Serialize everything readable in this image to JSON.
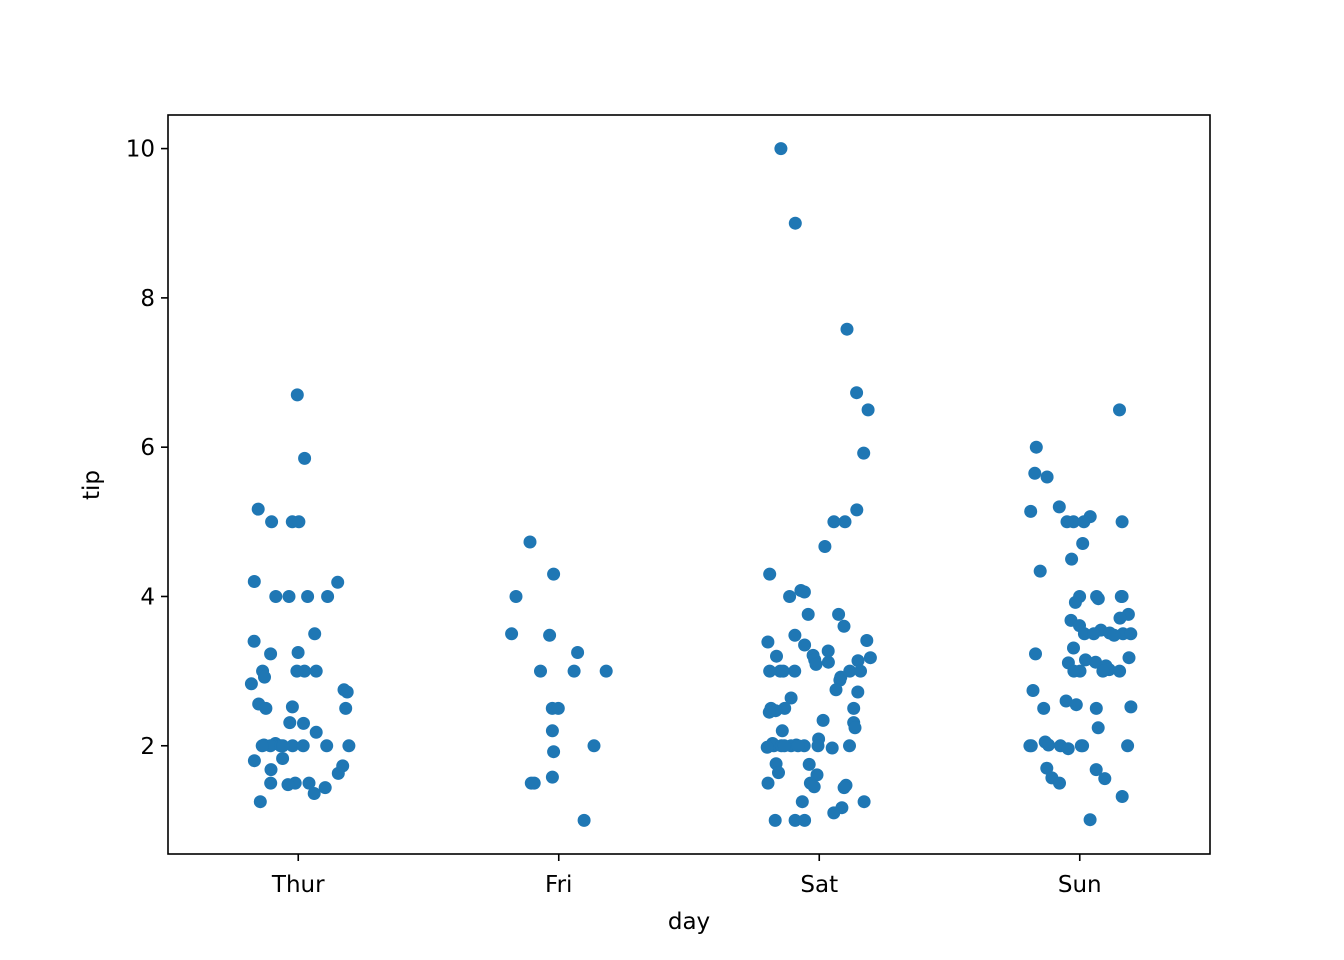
{
  "chart_data": {
    "type": "scatter",
    "variant": "strip",
    "xlabel": "day",
    "ylabel": "tip",
    "categories": [
      "Thur",
      "Fri",
      "Sat",
      "Sun"
    ],
    "ylim": [
      0.55,
      10.45
    ],
    "yticks": [
      2,
      4,
      6,
      8,
      10
    ],
    "grid": false,
    "legend": "none",
    "marker_color": "#1f77b4",
    "series": [
      {
        "category": "Thur",
        "values": [
          6.7,
          5.85,
          5.17,
          5.0,
          5.0,
          5.0,
          4.2,
          4.19,
          4.0,
          4.0,
          4.0,
          4.0,
          3.5,
          3.4,
          3.25,
          3.23,
          3.0,
          3.0,
          3.0,
          3.0,
          2.92,
          2.83,
          2.75,
          2.72,
          2.56,
          2.52,
          2.5,
          2.5,
          2.31,
          2.3,
          2.18,
          2.03,
          2.01,
          2.0,
          2.0,
          2.0,
          2.0,
          2.0,
          2.0,
          2.0,
          2.0,
          1.83,
          1.8,
          1.73,
          1.68,
          1.63,
          1.5,
          1.5,
          1.5,
          1.48,
          1.44,
          1.36,
          1.25
        ]
      },
      {
        "category": "Fri",
        "values": [
          4.73,
          4.3,
          4.0,
          3.5,
          3.48,
          3.25,
          3.0,
          3.0,
          3.0,
          2.5,
          2.5,
          2.2,
          2.0,
          1.92,
          1.58,
          1.5,
          1.5,
          1.0
        ]
      },
      {
        "category": "Sat",
        "values": [
          10.0,
          9.0,
          7.58,
          6.73,
          6.5,
          5.92,
          5.16,
          5.0,
          5.0,
          4.67,
          4.3,
          4.08,
          4.06,
          4.0,
          3.76,
          3.76,
          3.6,
          3.48,
          3.41,
          3.39,
          3.35,
          3.27,
          3.21,
          3.2,
          3.18,
          3.15,
          3.14,
          3.12,
          3.09,
          3.0,
          3.0,
          3.0,
          3.0,
          3.0,
          3.0,
          2.92,
          2.88,
          2.75,
          2.72,
          2.64,
          2.5,
          2.5,
          2.5,
          2.47,
          2.45,
          2.34,
          2.31,
          2.24,
          2.2,
          2.09,
          2.03,
          2.01,
          2.0,
          2.0,
          2.0,
          2.0,
          2.0,
          2.0,
          2.0,
          2.0,
          1.98,
          1.97,
          1.76,
          1.75,
          1.64,
          1.61,
          1.5,
          1.5,
          1.47,
          1.45,
          1.44,
          1.25,
          1.25,
          1.17,
          1.1,
          1.0,
          1.0,
          1.0
        ]
      },
      {
        "category": "Sun",
        "values": [
          6.5,
          6.0,
          5.65,
          5.6,
          5.2,
          5.14,
          5.07,
          5.0,
          5.0,
          5.0,
          5.0,
          4.71,
          4.5,
          4.34,
          4.0,
          4.0,
          4.0,
          4.0,
          3.97,
          3.92,
          3.76,
          3.71,
          3.68,
          3.61,
          3.55,
          3.51,
          3.5,
          3.5,
          3.5,
          3.5,
          3.48,
          3.31,
          3.23,
          3.18,
          3.15,
          3.12,
          3.11,
          3.07,
          3.02,
          3.0,
          3.0,
          3.0,
          3.0,
          2.74,
          2.6,
          2.55,
          2.52,
          2.5,
          2.5,
          2.24,
          2.05,
          2.01,
          2.0,
          2.0,
          2.0,
          2.0,
          2.0,
          2.0,
          1.96,
          1.7,
          1.68,
          1.57,
          1.56,
          1.5,
          1.32,
          1.01
        ]
      }
    ]
  }
}
